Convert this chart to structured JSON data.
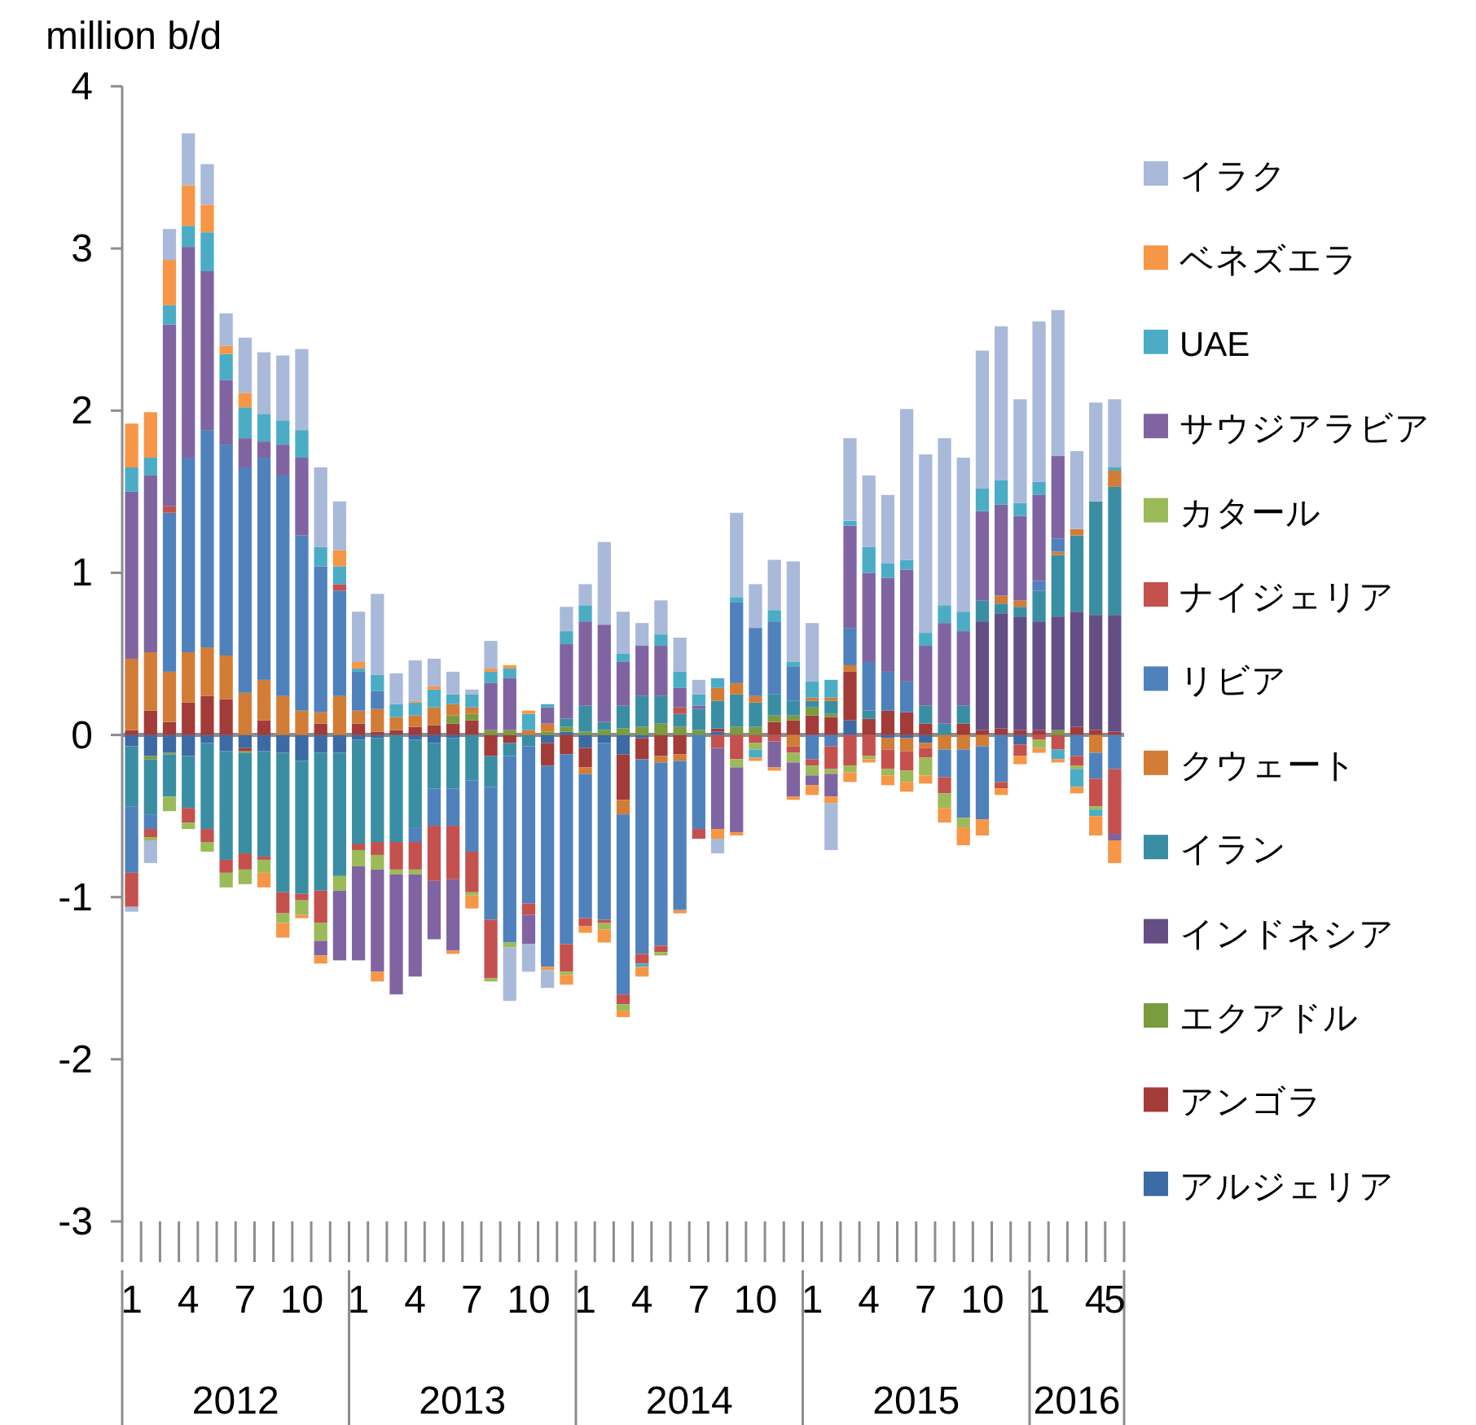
{
  "chart_data": {
    "type": "bar",
    "stacked": true,
    "ylabel": "million b/d",
    "ylim": [
      -3,
      4
    ],
    "yticks": [
      -3,
      -2,
      -1,
      0,
      1,
      2,
      3,
      4
    ],
    "legend": "right",
    "categories": [
      "1",
      null,
      null,
      "4",
      null,
      null,
      "7",
      null,
      null,
      "10",
      null,
      null,
      "1",
      null,
      null,
      "4",
      null,
      null,
      "7",
      null,
      null,
      "10",
      null,
      null,
      "1",
      null,
      null,
      "4",
      null,
      null,
      "7",
      null,
      null,
      "10",
      null,
      null,
      "1",
      null,
      null,
      "4",
      null,
      null,
      "7",
      null,
      null,
      "10",
      null,
      null,
      "1",
      null,
      null,
      "4",
      "5"
    ],
    "annotations": [
      "2012",
      "2013",
      "2014",
      "2015",
      "2016"
    ],
    "series": [
      {
        "name": "アルジェリア",
        "color": "#3c6aa5",
        "values": [
          -0.07,
          -0.13,
          -0.11,
          -0.13,
          -0.05,
          -0.1,
          -0.08,
          -0.1,
          -0.11,
          -0.16,
          -0.11,
          -0.11,
          -0.03,
          -0.02,
          0,
          -0.03,
          -0.05,
          -0.02,
          0,
          0,
          0,
          0,
          -0.05,
          0.02,
          -0.08,
          -0.05,
          -0.12,
          -0.02,
          0,
          0,
          0,
          0.02,
          0,
          0,
          0,
          0,
          0,
          0,
          0.09,
          0,
          -0.02,
          -0.02,
          -0.05,
          0,
          0,
          0,
          0,
          -0.06,
          0,
          0,
          0,
          0,
          0
        ]
      },
      {
        "name": "アンゴラ",
        "color": "#a33b39",
        "values": [
          0.03,
          0.15,
          0.08,
          0.2,
          0.24,
          0.22,
          -0.02,
          0.09,
          0,
          0,
          0.07,
          0,
          0.07,
          0.02,
          0.03,
          0.05,
          0.06,
          0.07,
          0.09,
          -0.13,
          -0.05,
          0,
          -0.14,
          -0.12,
          -0.12,
          0,
          -0.28,
          -0.13,
          -0.13,
          -0.12,
          0,
          0.02,
          0,
          0,
          0.08,
          0.09,
          0.12,
          0.11,
          0.3,
          0.1,
          0.15,
          0.14,
          0.07,
          0,
          0.07,
          0.03,
          0.04,
          0.03,
          0.03,
          0,
          0.05,
          0.03,
          0.02
        ]
      },
      {
        "name": "エクアドル",
        "color": "#7b9b3f",
        "values": [
          0,
          -0.02,
          -0.01,
          0,
          0,
          0,
          -0.01,
          0,
          0,
          0,
          0,
          0,
          0,
          0,
          0,
          0,
          0,
          0.05,
          0.04,
          0.03,
          0.03,
          0,
          0.02,
          0.03,
          0.02,
          0.03,
          0.04,
          0.05,
          0.07,
          0.05,
          0.03,
          0,
          0.05,
          0.05,
          0.04,
          0.03,
          0.05,
          0.02,
          0,
          0,
          0,
          0,
          0,
          0,
          0,
          0,
          0,
          0,
          0,
          0.03,
          0,
          0,
          0
        ]
      },
      {
        "name": "インドネシア",
        "color": "#644e86",
        "values": [
          0,
          0,
          0,
          0,
          0,
          0,
          0,
          0,
          0,
          0,
          0,
          0,
          0,
          0,
          0,
          0,
          0,
          0,
          0,
          0,
          0,
          0,
          0,
          0,
          0,
          0,
          0,
          0,
          0,
          0,
          0,
          0,
          0,
          0,
          0,
          0,
          0,
          0,
          0,
          0,
          0,
          0,
          0,
          0,
          0,
          0.67,
          0.71,
          0.7,
          0.67,
          0.7,
          0.71,
          0.71,
          0.72
        ]
      },
      {
        "name": "イラン",
        "color": "#3a8ea3",
        "values": [
          -0.37,
          -0.34,
          -0.26,
          -0.32,
          -0.53,
          -0.67,
          -0.62,
          -0.65,
          -0.86,
          -0.82,
          -0.85,
          -0.76,
          -0.64,
          -0.64,
          -0.66,
          -0.54,
          -0.28,
          -0.31,
          -0.28,
          -0.19,
          -0.08,
          -0.07,
          0,
          0.05,
          0.16,
          0.05,
          0.14,
          0.19,
          0.17,
          0.08,
          0.13,
          0.17,
          0.2,
          0.15,
          0.13,
          0.09,
          0.04,
          0.08,
          0,
          0.05,
          0,
          0,
          0.11,
          0.07,
          0.11,
          0.13,
          0.06,
          0.06,
          0.19,
          0.38,
          0.47,
          0.7,
          0.79
        ]
      },
      {
        "name": "クウェート",
        "color": "#d27c36",
        "values": [
          0.44,
          0.36,
          0.31,
          0.31,
          0.3,
          0.27,
          0.26,
          0.25,
          0.24,
          0.15,
          0.07,
          0.24,
          0.08,
          0.14,
          0.08,
          0.07,
          0.11,
          0.07,
          0.04,
          0,
          0,
          0.03,
          0.05,
          0,
          -0.04,
          0,
          -0.09,
          0,
          -0.04,
          -0.04,
          0,
          0.08,
          0.07,
          0.04,
          0,
          -0.07,
          0.02,
          0.02,
          0.04,
          0,
          -0.07,
          -0.08,
          -0.03,
          -0.09,
          -0.09,
          -0.07,
          0.05,
          0.04,
          0,
          0.02,
          0.04,
          -0.11,
          0.1
        ]
      },
      {
        "name": "リビア",
        "color": "#4f81bd",
        "values": [
          -0.41,
          -0.09,
          0.98,
          1.2,
          1.34,
          1.3,
          1.39,
          1.37,
          1.36,
          1.08,
          0.9,
          0.65,
          0.24,
          0.11,
          0,
          -0.09,
          -0.23,
          -0.23,
          -0.44,
          -0.82,
          -1.15,
          -0.97,
          -1.24,
          -1.17,
          -0.89,
          -1.09,
          -1.11,
          -1.2,
          -1.13,
          -0.92,
          -0.58,
          0,
          0.5,
          0.42,
          0.45,
          0.21,
          -0.15,
          -0.07,
          0.23,
          0.3,
          0.24,
          0.19,
          0,
          -0.17,
          -0.42,
          -0.45,
          -0.29,
          0,
          0.06,
          0.08,
          -0.13,
          -0.16,
          -0.21
        ]
      },
      {
        "name": "ナイジェリア",
        "color": "#c4514e",
        "values": [
          -0.21,
          -0.05,
          0.04,
          -0.09,
          -0.08,
          -0.08,
          -0.1,
          -0.02,
          -0.13,
          -0.04,
          -0.2,
          0.04,
          -0.04,
          -0.08,
          -0.17,
          -0.17,
          -0.34,
          -0.33,
          -0.25,
          -0.36,
          0,
          -0.07,
          0,
          -0.17,
          -0.05,
          -0.02,
          -0.06,
          -0.06,
          -0.04,
          0.04,
          -0.06,
          -0.08,
          -0.15,
          -0.05,
          -0.04,
          -0.04,
          -0.04,
          -0.14,
          -0.19,
          -0.13,
          -0.12,
          -0.12,
          -0.06,
          -0.1,
          0,
          0,
          -0.04,
          -0.07,
          -0.03,
          -0.09,
          -0.06,
          -0.17,
          -0.4
        ]
      },
      {
        "name": "カタール",
        "color": "#9bbb59",
        "values": [
          0,
          -0.02,
          -0.09,
          -0.04,
          -0.06,
          -0.09,
          -0.09,
          -0.08,
          -0.06,
          -0.09,
          -0.11,
          -0.09,
          -0.1,
          -0.09,
          -0.03,
          -0.03,
          0,
          0,
          -0.02,
          -0.02,
          -0.03,
          0,
          0,
          -0.02,
          0,
          -0.04,
          -0.04,
          0,
          -0.02,
          0,
          0,
          0,
          -0.05,
          -0.04,
          0,
          -0.06,
          -0.06,
          -0.03,
          -0.04,
          -0.02,
          -0.04,
          -0.07,
          -0.11,
          -0.09,
          -0.06,
          0,
          0,
          0,
          -0.05,
          0,
          -0.02,
          -0.02,
          0
        ]
      },
      {
        "name": "サウジアラビア",
        "color": "#8064a2",
        "values": [
          1.03,
          1.09,
          1.12,
          1.3,
          0.98,
          0.4,
          0.18,
          0.1,
          0.19,
          0.48,
          -0.09,
          -0.43,
          -0.58,
          -0.63,
          -0.74,
          -0.63,
          -0.36,
          -0.44,
          0,
          0.29,
          0.32,
          -0.18,
          0.1,
          0.46,
          0.52,
          0.6,
          0.27,
          0.31,
          0.31,
          0.12,
          0.02,
          -0.5,
          -0.4,
          0,
          -0.16,
          -0.21,
          -0.06,
          -0.14,
          0.63,
          0.55,
          0.58,
          0.69,
          0.37,
          0.62,
          0.46,
          0.55,
          0.56,
          0.52,
          0.53,
          0.51,
          0,
          0,
          -0.04
        ]
      },
      {
        "name": "UAE",
        "color": "#4bacc6",
        "values": [
          0.15,
          0.11,
          0.12,
          0.13,
          0.24,
          0.16,
          0.19,
          0.17,
          0.15,
          0.17,
          0.12,
          0.11,
          0.02,
          0.1,
          0.08,
          0.08,
          0.11,
          0.06,
          0.08,
          0.07,
          0.06,
          0.1,
          0.02,
          0.08,
          0.1,
          0,
          0.05,
          -0.02,
          0.07,
          0.1,
          0.07,
          0.06,
          0.03,
          -0.05,
          0.07,
          0.03,
          0.1,
          0.11,
          0.03,
          0.16,
          0.09,
          0.06,
          0.08,
          0.11,
          0.12,
          0.14,
          0.15,
          0.08,
          0.08,
          -0.06,
          -0.11,
          -0.04,
          0.02
        ]
      },
      {
        "name": "ベネズエラ",
        "color": "#f79646",
        "values": [
          0.27,
          0.28,
          0.28,
          0.25,
          0.17,
          0.05,
          0.09,
          -0.09,
          -0.09,
          -0.02,
          -0.05,
          0.1,
          0.04,
          -0.06,
          0,
          0.01,
          0.02,
          -0.02,
          -0.08,
          0.02,
          0.02,
          0.02,
          -0.02,
          -0.06,
          -0.04,
          -0.08,
          -0.04,
          -0.06,
          0,
          -0.02,
          0,
          -0.06,
          -0.02,
          -0.02,
          -0.02,
          -0.02,
          -0.06,
          -0.04,
          -0.06,
          -0.02,
          -0.06,
          -0.06,
          -0.05,
          -0.09,
          -0.11,
          -0.1,
          -0.04,
          -0.05,
          -0.03,
          -0.02,
          -0.04,
          -0.12,
          -0.14
        ]
      },
      {
        "name": "イラク",
        "color": "#a9b9d9",
        "values": [
          -0.03,
          -0.14,
          0.19,
          0.32,
          0.25,
          0.2,
          0.34,
          0.38,
          0.4,
          0.5,
          0.49,
          0.3,
          0.31,
          0.5,
          0.19,
          0.25,
          0.17,
          0.14,
          0.03,
          0.17,
          -0.33,
          -0.17,
          -0.11,
          0.15,
          0.13,
          0.51,
          0.26,
          0.14,
          0.21,
          0.21,
          0.09,
          -0.09,
          0.52,
          0.27,
          0.31,
          0.62,
          0.36,
          -0.29,
          0.51,
          0.44,
          0.42,
          0.93,
          1.1,
          1.03,
          0.95,
          0.85,
          0.95,
          0.64,
          0.99,
          0.9,
          0.48,
          0.61,
          0.42
        ]
      }
    ]
  }
}
